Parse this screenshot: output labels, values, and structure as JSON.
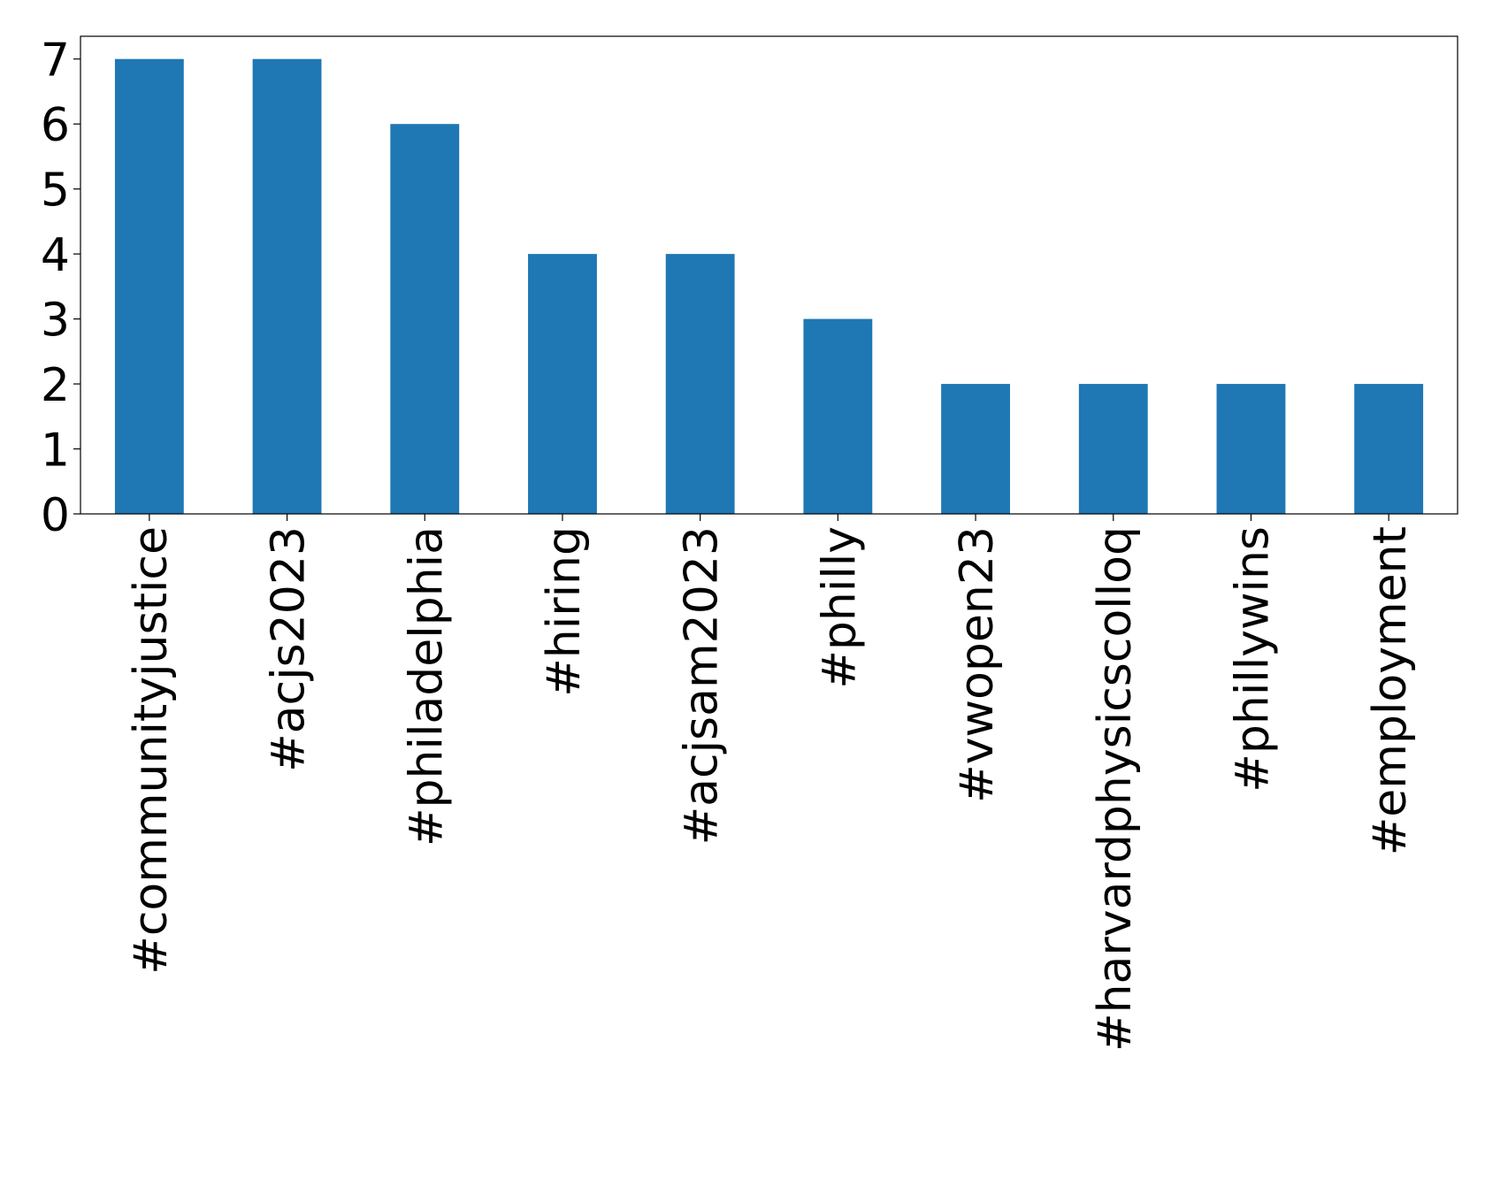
{
  "chart_data": {
    "type": "bar",
    "categories": [
      "#communityjustice",
      "#acjs2023",
      "#philadelphia",
      "#hiring",
      "#acjsam2023",
      "#philly",
      "#vwopen23",
      "#harvardphysicscolloq",
      "#phillywins",
      "#employment"
    ],
    "values": [
      7,
      7,
      6,
      4,
      4,
      3,
      2,
      2,
      2,
      2
    ],
    "color": "#1f77b4",
    "ylim": [
      0,
      7.35
    ],
    "yticks": [
      0,
      1,
      2,
      3,
      4,
      5,
      6,
      7
    ],
    "grid": false
  }
}
